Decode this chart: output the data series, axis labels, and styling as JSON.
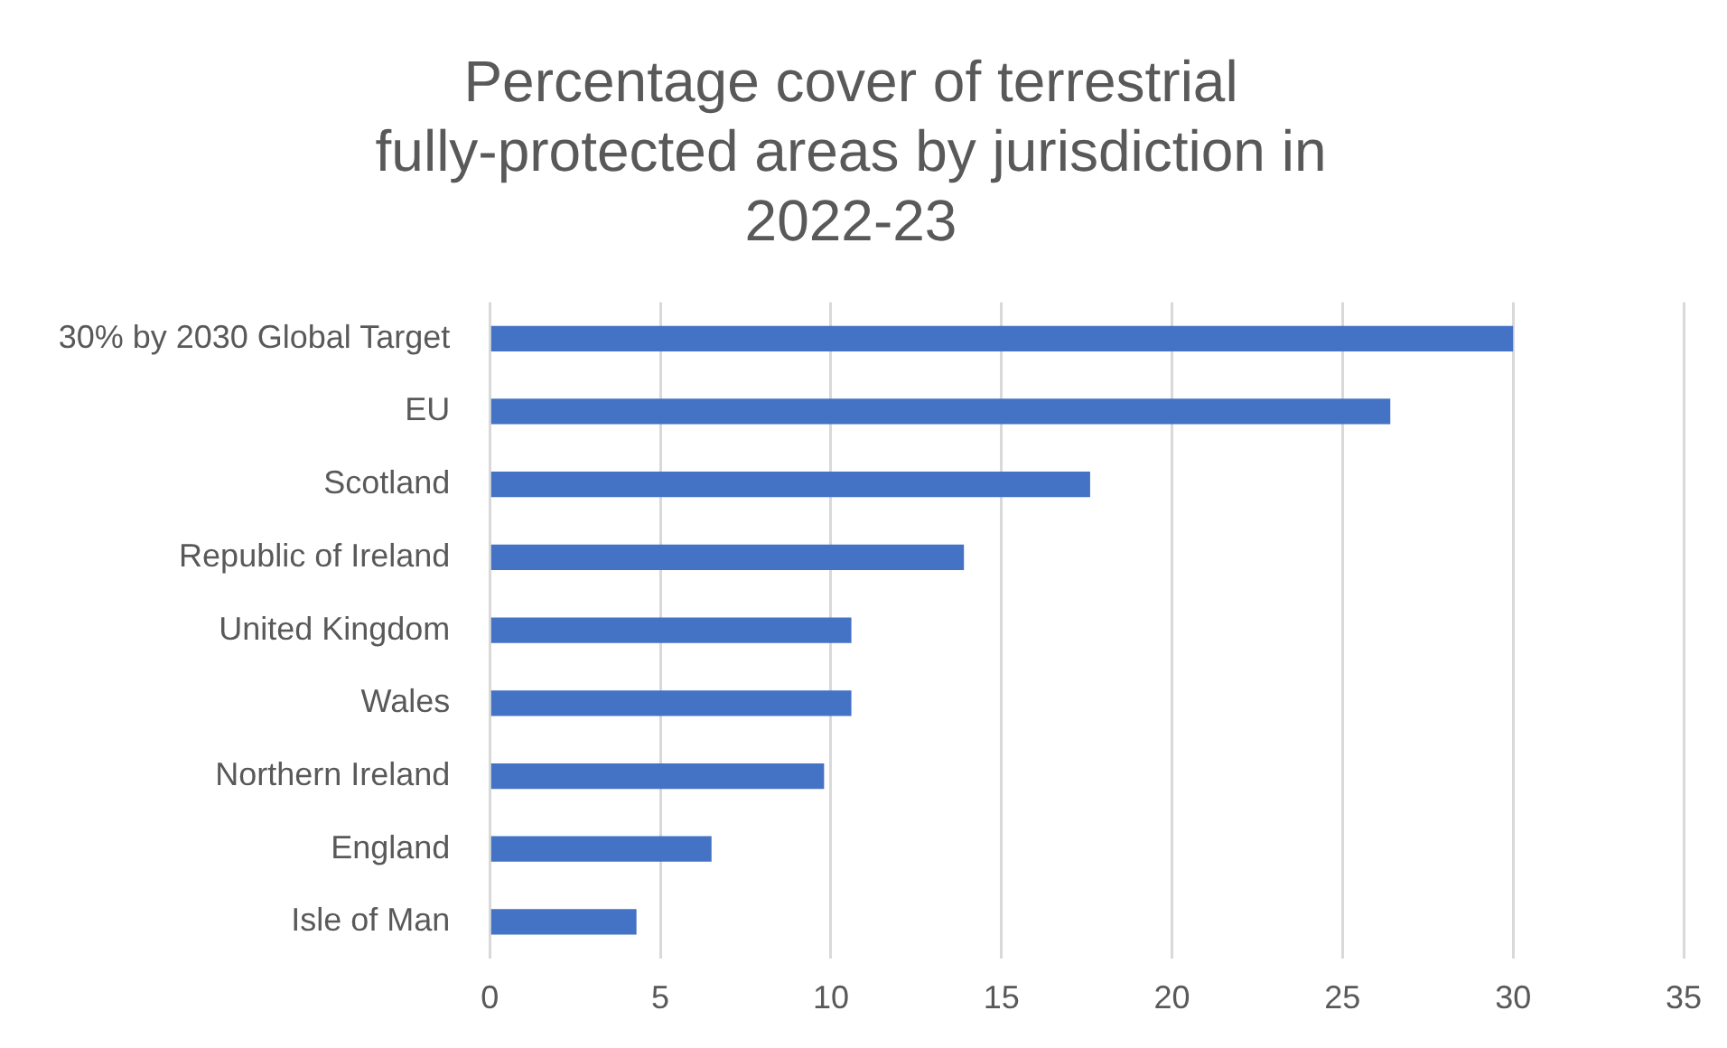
{
  "chart_data": {
    "type": "bar",
    "orientation": "horizontal",
    "title": "Percentage cover of terrestrial fully-protected areas by jurisdiction in 2022-23",
    "categories": [
      "30% by 2030 Global Target",
      "EU",
      "Scotland",
      "Republic of Ireland",
      "United Kingdom",
      "Wales",
      "Northern Ireland",
      "England",
      "Isle of Man"
    ],
    "values": [
      30,
      26.4,
      17.6,
      13.9,
      10.6,
      10.6,
      9.8,
      6.5,
      4.3
    ],
    "color": "#4472c4",
    "xlim": [
      0,
      35
    ],
    "xticks": [
      0,
      5,
      10,
      15,
      20,
      25,
      30,
      35
    ],
    "grid": "x",
    "legend": false
  }
}
